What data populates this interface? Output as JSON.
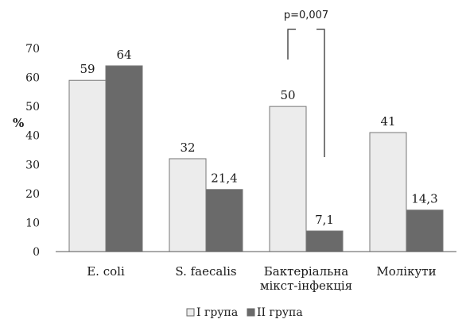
{
  "chart_data": {
    "type": "bar",
    "ylabel": "%",
    "ylim": [
      0,
      70
    ],
    "yticks": [
      0,
      10,
      20,
      30,
      40,
      50,
      60,
      70
    ],
    "categories": [
      [
        "E. coli"
      ],
      [
        "S. faecalis"
      ],
      [
        "Бактеріальна",
        "мікст-інфекція"
      ],
      [
        "Молікути"
      ]
    ],
    "series": [
      {
        "name": "I група",
        "values": [
          59,
          32,
          50,
          41
        ],
        "labels": [
          "59",
          "32",
          "50",
          "41"
        ],
        "color": "#ececec"
      },
      {
        "name": "II група",
        "values": [
          64,
          21.4,
          7.1,
          14.3
        ],
        "labels": [
          "64",
          "21,4",
          "7,1",
          "14,3"
        ],
        "color": "#6a6a6a"
      }
    ],
    "annotation": {
      "text": "p=0,007",
      "category_index": 2
    },
    "legend_position": "bottom",
    "grid": false
  }
}
